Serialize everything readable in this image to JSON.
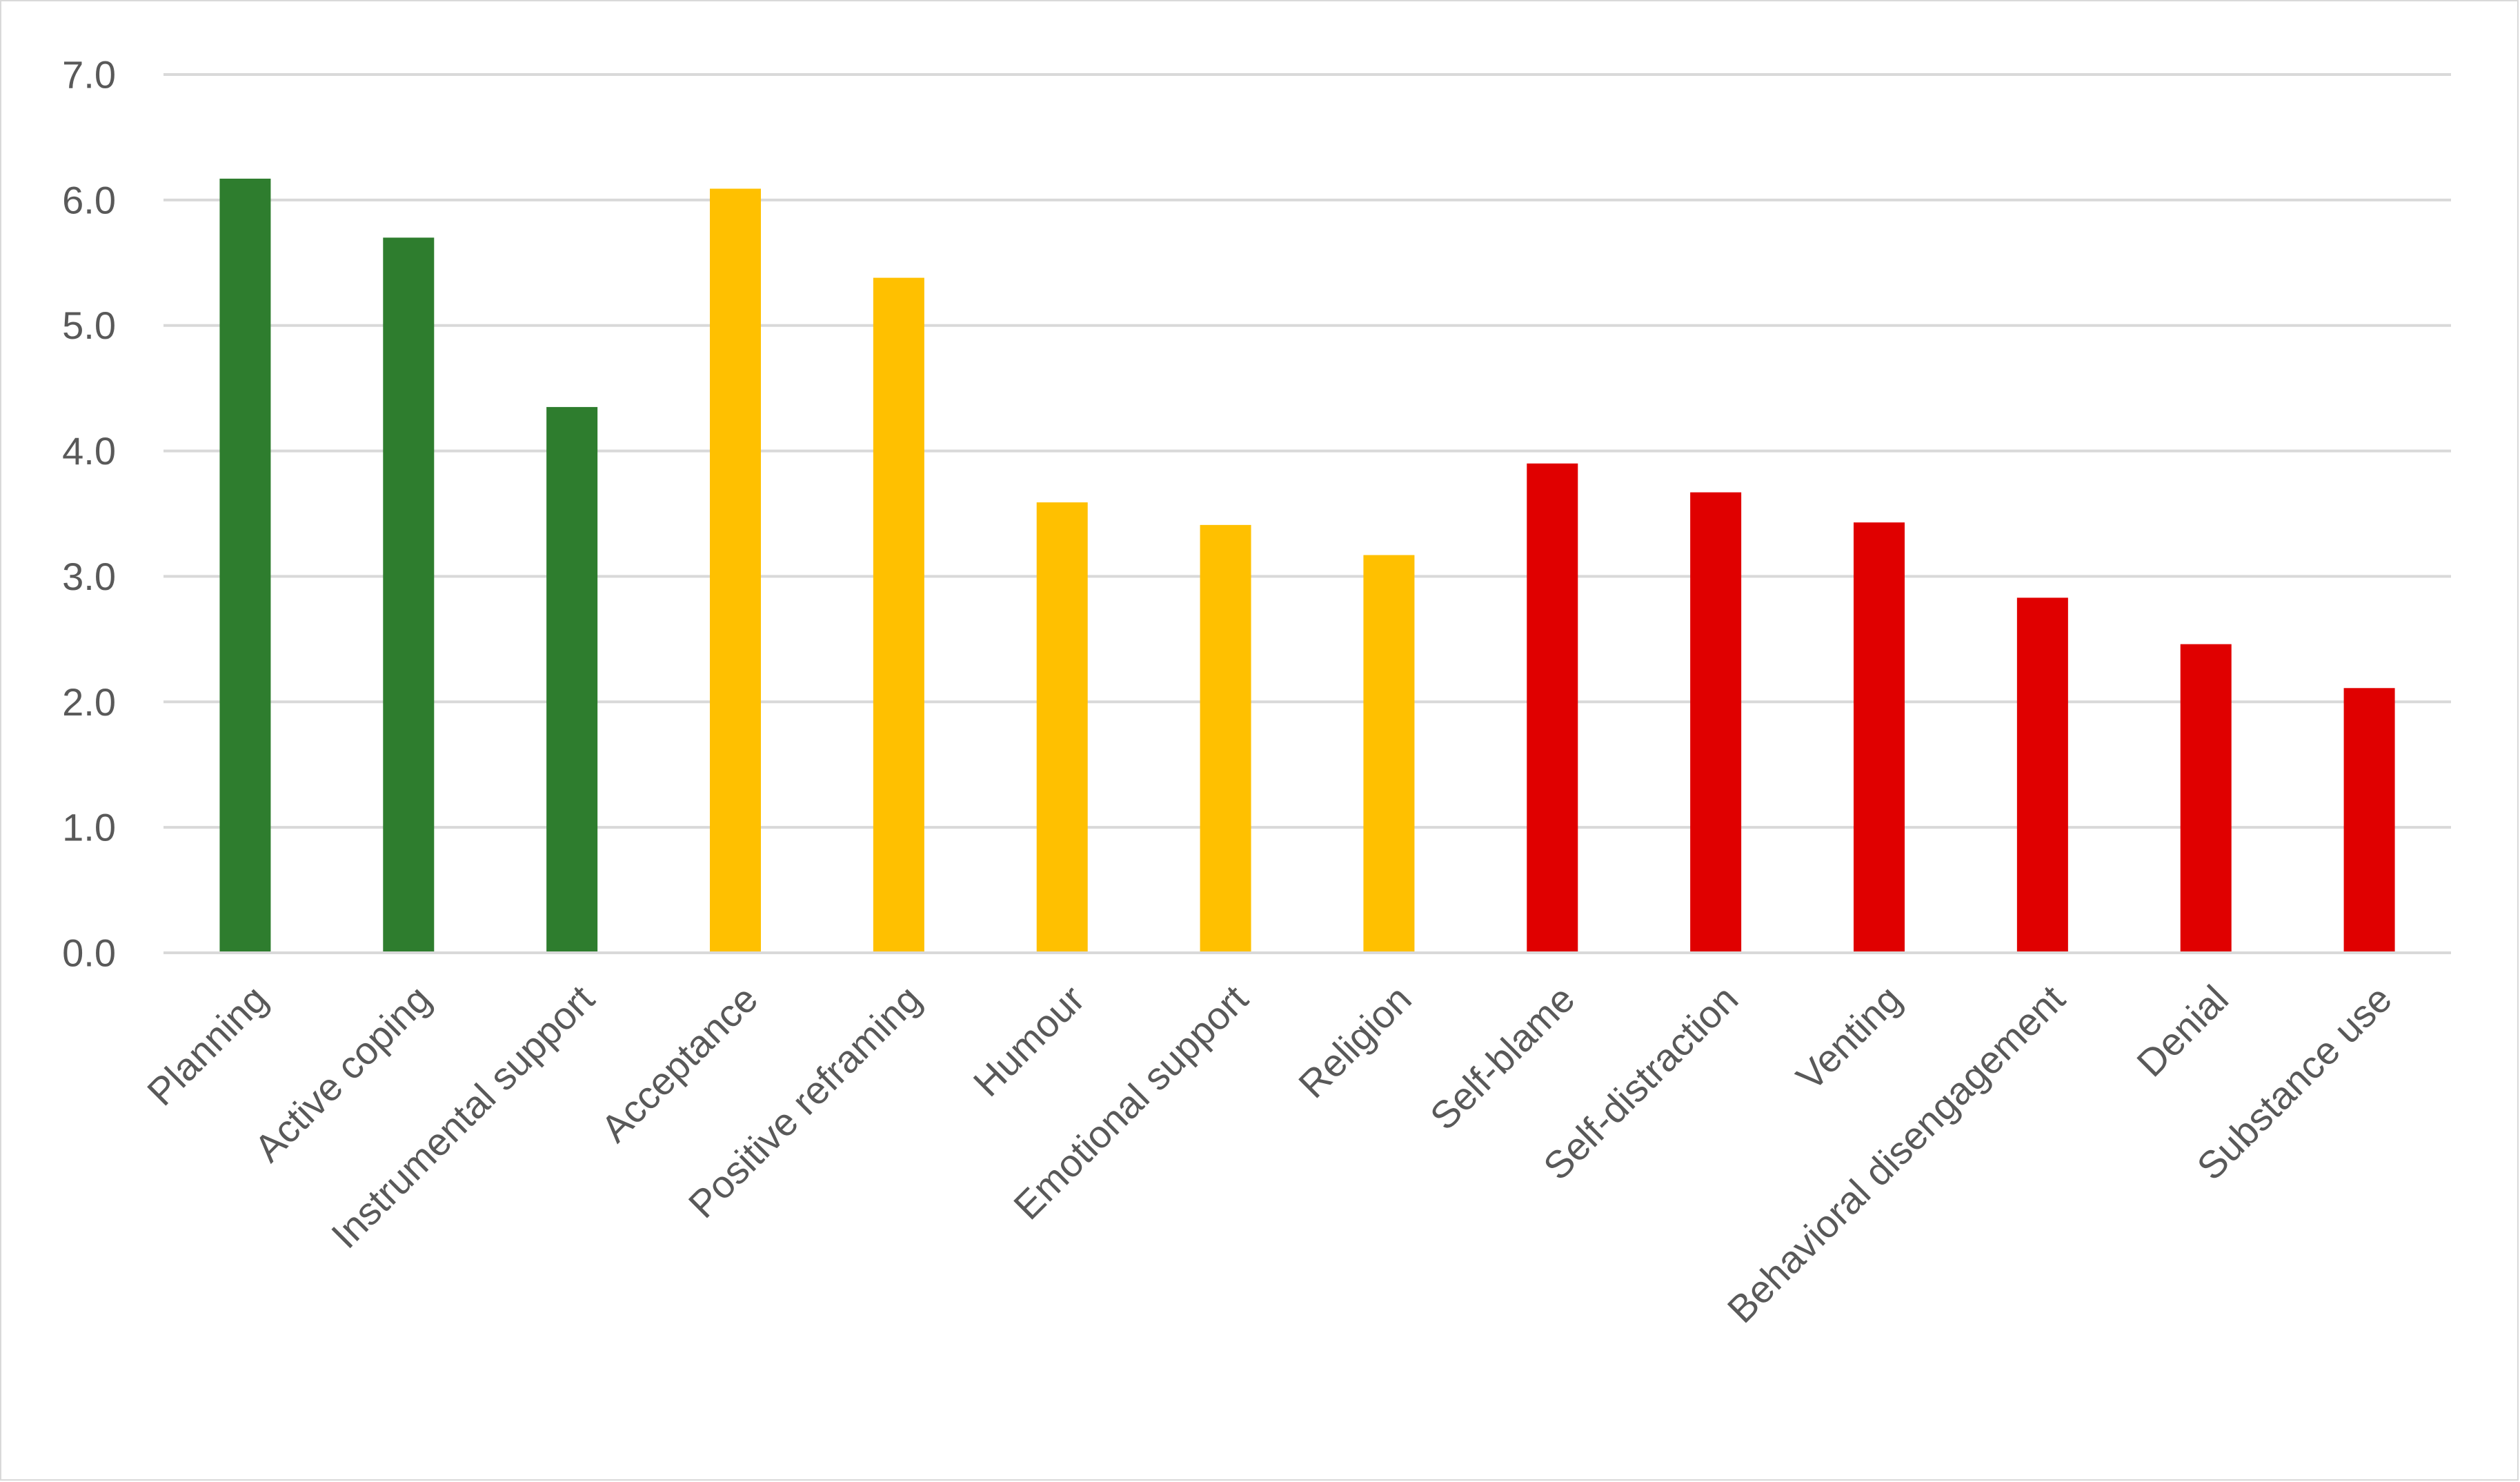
{
  "chart_data": {
    "type": "bar",
    "title": "",
    "xlabel": "",
    "ylabel": "",
    "ylim": [
      0,
      7
    ],
    "y_ticks": [
      "0.0",
      "1.0",
      "2.0",
      "3.0",
      "4.0",
      "5.0",
      "6.0",
      "7.0"
    ],
    "grid": true,
    "legend": "none",
    "categories": [
      "Planning",
      "Active coping",
      "Instrumental support",
      "Acceptance",
      "Positive reframing",
      "Humour",
      "Emotional support",
      "Religion",
      "Self-blame",
      "Self-distraction",
      "Venting",
      "Behavioral disengagement",
      "Denial",
      "Substance use"
    ],
    "values": [
      6.17,
      5.7,
      4.35,
      6.09,
      5.38,
      3.59,
      3.41,
      3.17,
      3.9,
      3.67,
      3.43,
      2.83,
      2.46,
      2.11
    ],
    "bar_colors": [
      "#2e7d2e",
      "#2e7d2e",
      "#2e7d2e",
      "#ffc000",
      "#ffc000",
      "#ffc000",
      "#ffc000",
      "#ffc000",
      "#e00000",
      "#e00000",
      "#e00000",
      "#e00000",
      "#e00000",
      "#e00000"
    ],
    "colors": {
      "grid": "#d9d9d9",
      "axis": "#d9d9d9",
      "text": "#595959"
    }
  }
}
